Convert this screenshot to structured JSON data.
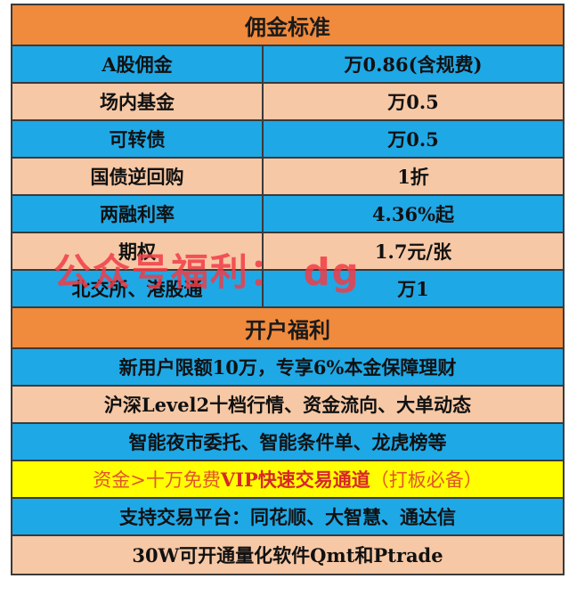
{
  "commission_header": "佣金标准",
  "commission_rows": [
    {
      "label": "A股佣金",
      "value": "万0.86(含规费)"
    },
    {
      "label": "场内基金",
      "value": "万0.5"
    },
    {
      "label": "可转债",
      "value": "万0.5"
    },
    {
      "label": "国债逆回购",
      "value": "1折"
    },
    {
      "label": "两融利率",
      "value": "4.36%起"
    },
    {
      "label": "期权",
      "value": "1.7元/张"
    },
    {
      "label": "北交所、港股通",
      "value": "万1"
    }
  ],
  "benefits_header": "开户福利",
  "benefits": [
    "新用户限额10万，专享6%本金保障理财",
    "沪深Level2十档行情、资金流向、大单动态",
    "智能夜市委托、智能条件单、龙虎榜等",
    {
      "left": "资金>十万免费",
      "mid": "VIP快速交易通道",
      "right": "（打板必备）"
    },
    "支持交易平台：同花顺、大智慧、通达信",
    "30W可开通量化软件Qmt和Ptrade"
  ],
  "watermark": "公众号福利： dg",
  "colors": {
    "orange": "#f08a3c",
    "blue": "#1fa8e6",
    "peach": "#f7c8a5",
    "yellow": "#ffff00"
  }
}
